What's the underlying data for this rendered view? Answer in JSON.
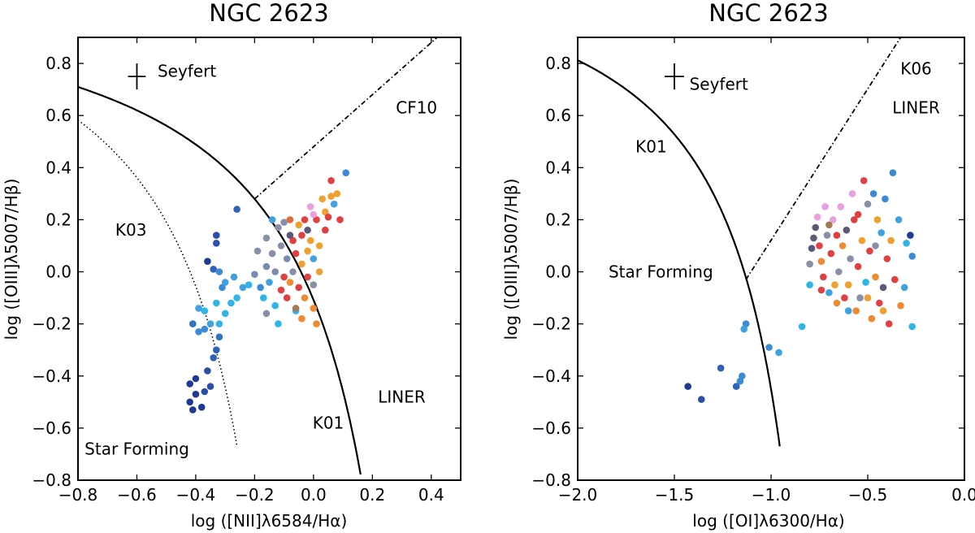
{
  "chart_data": [
    {
      "type": "scatter",
      "title": "NGC 2623",
      "xlabel": "log ([NII]λ6584/Hα)",
      "ylabel": "log ([OIII]λ5007/Hβ)",
      "xlim": [
        -0.8,
        0.5
      ],
      "ylim": [
        -0.8,
        0.9
      ],
      "xticks": [
        "−0.8",
        "−0.6",
        "−0.4",
        "−0.2",
        "0.0",
        "0.2",
        "0.4"
      ],
      "yticks": [
        "−0.8",
        "−0.6",
        "−0.4",
        "−0.2",
        "0.0",
        "0.2",
        "0.4",
        "0.6",
        "0.8"
      ],
      "error_bar": {
        "x": -0.6,
        "y": 0.75,
        "xerr": 0.03,
        "yerr": 0.05
      },
      "lines": [
        {
          "name": "K01",
          "style": "solid",
          "formula": "0.61/(x-0.47)+1.19",
          "xrange": [
            -0.8,
            0.16
          ]
        },
        {
          "name": "K03",
          "style": "dotted",
          "formula": "0.61/(x-0.05)+1.3",
          "xrange": [
            -0.8,
            -0.26
          ]
        },
        {
          "name": "CF10",
          "style": "dashdot",
          "points": [
            [
              -0.2,
              0.28
            ],
            [
              0.42,
              0.9
            ]
          ]
        }
      ],
      "annotations": [
        {
          "text": "Seyfert",
          "x": -0.43,
          "y": 0.77
        },
        {
          "text": "CF10",
          "x": 0.35,
          "y": 0.63
        },
        {
          "text": "K03",
          "x": -0.62,
          "y": 0.16
        },
        {
          "text": "LINER",
          "x": 0.3,
          "y": -0.48
        },
        {
          "text": "K01",
          "x": 0.05,
          "y": -0.58
        },
        {
          "text": "Star Forming",
          "x": -0.6,
          "y": -0.68
        }
      ],
      "points": [
        {
          "x": -0.42,
          "y": -0.5,
          "c": "#1f3a93"
        },
        {
          "x": -0.41,
          "y": -0.53,
          "c": "#1f3a93"
        },
        {
          "x": -0.4,
          "y": -0.47,
          "c": "#1f3a93"
        },
        {
          "x": -0.42,
          "y": -0.43,
          "c": "#1f3a93"
        },
        {
          "x": -0.4,
          "y": -0.41,
          "c": "#1f3a93"
        },
        {
          "x": -0.38,
          "y": -0.52,
          "c": "#1f3a93"
        },
        {
          "x": -0.37,
          "y": -0.46,
          "c": "#2a4fa8"
        },
        {
          "x": -0.35,
          "y": -0.44,
          "c": "#2a4fa8"
        },
        {
          "x": -0.36,
          "y": -0.38,
          "c": "#2a4fa8"
        },
        {
          "x": -0.33,
          "y": -0.3,
          "c": "#2e62b8"
        },
        {
          "x": -0.34,
          "y": -0.33,
          "c": "#2e62b8"
        },
        {
          "x": -0.32,
          "y": -0.25,
          "c": "#2e72c4"
        },
        {
          "x": -0.41,
          "y": -0.2,
          "c": "#2e72c4"
        },
        {
          "x": -0.39,
          "y": -0.23,
          "c": "#3a8ad6"
        },
        {
          "x": -0.37,
          "y": -0.22,
          "c": "#3a8ad6"
        },
        {
          "x": -0.35,
          "y": -0.2,
          "c": "#3fa2e0"
        },
        {
          "x": -0.39,
          "y": -0.14,
          "c": "#3fa2e0"
        },
        {
          "x": -0.37,
          "y": -0.15,
          "c": "#2fb5e8"
        },
        {
          "x": -0.32,
          "y": -0.2,
          "c": "#2fb5e8"
        },
        {
          "x": -0.33,
          "y": -0.12,
          "c": "#2fb5e8"
        },
        {
          "x": -0.3,
          "y": -0.16,
          "c": "#2fb5e8"
        },
        {
          "x": -0.36,
          "y": 0.04,
          "c": "#1f3a93"
        },
        {
          "x": -0.33,
          "y": 0.14,
          "c": "#2a4fa8"
        },
        {
          "x": -0.33,
          "y": 0.11,
          "c": "#2a4fa8"
        },
        {
          "x": -0.34,
          "y": 0.01,
          "c": "#2e62b8"
        },
        {
          "x": -0.32,
          "y": 0.0,
          "c": "#3a8ad6"
        },
        {
          "x": -0.31,
          "y": -0.06,
          "c": "#3a8ad6"
        },
        {
          "x": -0.3,
          "y": -0.04,
          "c": "#3fa2e0"
        },
        {
          "x": -0.28,
          "y": -0.12,
          "c": "#2fb5e8"
        },
        {
          "x": -0.26,
          "y": -0.1,
          "c": "#2fb5e8"
        },
        {
          "x": -0.27,
          "y": -0.02,
          "c": "#3fa2e0"
        },
        {
          "x": -0.24,
          "y": -0.06,
          "c": "#3fa2e0"
        },
        {
          "x": -0.26,
          "y": 0.24,
          "c": "#2e62b8"
        },
        {
          "x": -0.22,
          "y": -0.05,
          "c": "#2fb5e8"
        },
        {
          "x": -0.2,
          "y": -0.01,
          "c": "#7a8bb0"
        },
        {
          "x": -0.19,
          "y": 0.08,
          "c": "#8a8fa8"
        },
        {
          "x": -0.18,
          "y": -0.06,
          "c": "#3a8ad6"
        },
        {
          "x": -0.17,
          "y": -0.1,
          "c": "#2fb5e8"
        },
        {
          "x": -0.16,
          "y": 0.02,
          "c": "#7a8bb0"
        },
        {
          "x": -0.16,
          "y": 0.13,
          "c": "#8a8fa8"
        },
        {
          "x": -0.15,
          "y": -0.04,
          "c": "#3fa2e0"
        },
        {
          "x": -0.14,
          "y": 0.07,
          "c": "#8a8fa8"
        },
        {
          "x": -0.13,
          "y": -0.13,
          "c": "#2fb5e8"
        },
        {
          "x": -0.13,
          "y": 0.0,
          "c": "#7a8bb0"
        },
        {
          "x": -0.12,
          "y": 0.17,
          "c": "#8a8fa8"
        },
        {
          "x": -0.11,
          "y": -0.07,
          "c": "#e04040"
        },
        {
          "x": -0.11,
          "y": 0.1,
          "c": "#8a8fa8"
        },
        {
          "x": -0.1,
          "y": -0.02,
          "c": "#e04040"
        },
        {
          "x": -0.1,
          "y": 0.19,
          "c": "#8a8fa8"
        },
        {
          "x": -0.09,
          "y": 0.05,
          "c": "#7a8bb0"
        },
        {
          "x": -0.09,
          "y": -0.1,
          "c": "#e04040"
        },
        {
          "x": -0.08,
          "y": 0.2,
          "c": "#e06a3a"
        },
        {
          "x": -0.08,
          "y": -0.04,
          "c": "#f08a30"
        },
        {
          "x": -0.07,
          "y": 0.12,
          "c": "#e04040"
        },
        {
          "x": -0.07,
          "y": 0.0,
          "c": "#8a8fa8"
        },
        {
          "x": -0.06,
          "y": -0.15,
          "c": "#2fb5e8"
        },
        {
          "x": -0.06,
          "y": 0.07,
          "c": "#e04040"
        },
        {
          "x": -0.05,
          "y": 0.18,
          "c": "#f0a030"
        },
        {
          "x": -0.05,
          "y": -0.06,
          "c": "#e04040"
        },
        {
          "x": -0.04,
          "y": 0.14,
          "c": "#e04040"
        },
        {
          "x": -0.04,
          "y": 0.03,
          "c": "#f0a030"
        },
        {
          "x": -0.03,
          "y": -0.1,
          "c": "#f08a30"
        },
        {
          "x": -0.03,
          "y": 0.2,
          "c": "#e04040"
        },
        {
          "x": -0.02,
          "y": 0.08,
          "c": "#f0a030"
        },
        {
          "x": -0.02,
          "y": -0.02,
          "c": "#e04040"
        },
        {
          "x": -0.01,
          "y": 0.25,
          "c": "#e9a0e0"
        },
        {
          "x": -0.01,
          "y": 0.12,
          "c": "#f0a030"
        },
        {
          "x": 0.0,
          "y": -0.05,
          "c": "#8a8fa8"
        },
        {
          "x": 0.0,
          "y": 0.05,
          "c": "#3fa2e0"
        },
        {
          "x": 0.01,
          "y": 0.2,
          "c": "#e04040"
        },
        {
          "x": 0.01,
          "y": -0.2,
          "c": "#f08a30"
        },
        {
          "x": 0.02,
          "y": 0.1,
          "c": "#f0a030"
        },
        {
          "x": 0.02,
          "y": 0.0,
          "c": "#f0a030"
        },
        {
          "x": 0.03,
          "y": 0.28,
          "c": "#f0a030"
        },
        {
          "x": 0.04,
          "y": 0.16,
          "c": "#e04040"
        },
        {
          "x": 0.04,
          "y": 0.23,
          "c": "#f0a030"
        },
        {
          "x": 0.05,
          "y": 0.21,
          "c": "#e04040"
        },
        {
          "x": 0.06,
          "y": 0.29,
          "c": "#f0a030"
        },
        {
          "x": 0.06,
          "y": 0.35,
          "c": "#e04040"
        },
        {
          "x": 0.07,
          "y": 0.26,
          "c": "#3fa2e0"
        },
        {
          "x": 0.08,
          "y": 0.3,
          "c": "#f0a030"
        },
        {
          "x": 0.09,
          "y": 0.2,
          "c": "#e04040"
        },
        {
          "x": 0.11,
          "y": 0.38,
          "c": "#3a8ad6"
        },
        {
          "x": -0.12,
          "y": -0.2,
          "c": "#2fb5e8"
        },
        {
          "x": -0.16,
          "y": -0.16,
          "c": "#8a8fa8"
        },
        {
          "x": -0.14,
          "y": 0.2,
          "c": "#3fa2e0"
        },
        {
          "x": -0.06,
          "y": -0.14,
          "c": "#a07a50"
        },
        {
          "x": -0.04,
          "y": -0.18,
          "c": "#f08a30"
        },
        {
          "x": 0.0,
          "y": -0.14,
          "c": "#f08a30"
        },
        {
          "x": -0.08,
          "y": 0.14,
          "c": "#5a5a78"
        },
        {
          "x": -0.02,
          "y": 0.16,
          "c": "#5a5a78"
        },
        {
          "x": 0.0,
          "y": 0.22,
          "c": "#e9a0e0"
        }
      ]
    },
    {
      "type": "scatter",
      "title": "NGC 2623",
      "xlabel": "log ([OI]λ6300/Hα)",
      "ylabel": "log ([OIII]λ5007/Hβ)",
      "xlim": [
        -2.0,
        0.0
      ],
      "ylim": [
        -0.8,
        0.9
      ],
      "xticks": [
        "−2.0",
        "−1.5",
        "−1.0",
        "−0.5",
        "0.0"
      ],
      "yticks": [
        "−0.8",
        "−0.6",
        "−0.4",
        "−0.2",
        "0.0",
        "0.2",
        "0.4",
        "0.6",
        "0.8"
      ],
      "error_bar": {
        "x": -1.5,
        "y": 0.75,
        "xerr": 0.05,
        "yerr": 0.05
      },
      "lines": [
        {
          "name": "K01",
          "style": "solid",
          "formula": "0.73/(x+0.59)+1.33",
          "xrange": [
            -2.0,
            -0.955
          ]
        },
        {
          "name": "K06",
          "style": "dashdot",
          "points": [
            [
              -1.13,
              -0.03
            ],
            [
              -0.33,
              0.9
            ]
          ]
        }
      ],
      "annotations": [
        {
          "text": "Seyfert",
          "x": -1.27,
          "y": 0.72
        },
        {
          "text": "K06",
          "x": -0.25,
          "y": 0.78
        },
        {
          "text": "LINER",
          "x": -0.25,
          "y": 0.63
        },
        {
          "text": "K01",
          "x": -1.62,
          "y": 0.48
        },
        {
          "text": "Star Forming",
          "x": -1.57,
          "y": 0.0
        }
      ],
      "points": [
        {
          "x": -1.43,
          "y": -0.44,
          "c": "#1f3a93"
        },
        {
          "x": -1.36,
          "y": -0.49,
          "c": "#2a4fa8"
        },
        {
          "x": -1.26,
          "y": -0.37,
          "c": "#2e62b8"
        },
        {
          "x": -1.18,
          "y": -0.44,
          "c": "#2e62b8"
        },
        {
          "x": -1.16,
          "y": -0.42,
          "c": "#3a8ad6"
        },
        {
          "x": -1.15,
          "y": -0.4,
          "c": "#3a8ad6"
        },
        {
          "x": -1.13,
          "y": -0.2,
          "c": "#3a8ad6"
        },
        {
          "x": -1.14,
          "y": -0.22,
          "c": "#3fa2e0"
        },
        {
          "x": -1.01,
          "y": -0.29,
          "c": "#3a8ad6"
        },
        {
          "x": -0.96,
          "y": -0.31,
          "c": "#3fa2e0"
        },
        {
          "x": -0.84,
          "y": -0.21,
          "c": "#2fb5e8"
        },
        {
          "x": -0.8,
          "y": -0.05,
          "c": "#2fb5e8"
        },
        {
          "x": -0.78,
          "y": 0.13,
          "c": "#5a5a78"
        },
        {
          "x": -0.77,
          "y": 0.17,
          "c": "#5a5a78"
        },
        {
          "x": -0.76,
          "y": 0.21,
          "c": "#e9a0e0"
        },
        {
          "x": -0.75,
          "y": 0.1,
          "c": "#e04040"
        },
        {
          "x": -0.74,
          "y": 0.04,
          "c": "#f08a30"
        },
        {
          "x": -0.73,
          "y": -0.02,
          "c": "#e04040"
        },
        {
          "x": -0.72,
          "y": 0.25,
          "c": "#e9a0e0"
        },
        {
          "x": -0.71,
          "y": 0.14,
          "c": "#8a8fa8"
        },
        {
          "x": -0.7,
          "y": -0.08,
          "c": "#3fa2e0"
        },
        {
          "x": -0.69,
          "y": 0.07,
          "c": "#e04040"
        },
        {
          "x": -0.68,
          "y": 0.2,
          "c": "#e9a0e0"
        },
        {
          "x": -0.67,
          "y": -0.05,
          "c": "#f0a030"
        },
        {
          "x": -0.66,
          "y": 0.14,
          "c": "#e04040"
        },
        {
          "x": -0.65,
          "y": 0.0,
          "c": "#8a8fa8"
        },
        {
          "x": -0.64,
          "y": 0.25,
          "c": "#e9a0e0"
        },
        {
          "x": -0.63,
          "y": 0.1,
          "c": "#f08a30"
        },
        {
          "x": -0.62,
          "y": -0.1,
          "c": "#e04040"
        },
        {
          "x": -0.61,
          "y": 0.16,
          "c": "#5a5a78"
        },
        {
          "x": -0.6,
          "y": -0.05,
          "c": "#f0a030"
        },
        {
          "x": -0.59,
          "y": 0.05,
          "c": "#8a8fa8"
        },
        {
          "x": -0.58,
          "y": 0.3,
          "c": "#e9a0e0"
        },
        {
          "x": -0.57,
          "y": 0.2,
          "c": "#e04040"
        },
        {
          "x": -0.56,
          "y": -0.15,
          "c": "#f08a30"
        },
        {
          "x": -0.55,
          "y": 0.02,
          "c": "#e04040"
        },
        {
          "x": -0.54,
          "y": -0.1,
          "c": "#8a8fa8"
        },
        {
          "x": -0.53,
          "y": 0.12,
          "c": "#f0a030"
        },
        {
          "x": -0.52,
          "y": 0.35,
          "c": "#e04040"
        },
        {
          "x": -0.51,
          "y": -0.04,
          "c": "#2fb5e8"
        },
        {
          "x": -0.5,
          "y": 0.26,
          "c": "#8a8fa8"
        },
        {
          "x": -0.49,
          "y": 0.08,
          "c": "#e04040"
        },
        {
          "x": -0.48,
          "y": -0.18,
          "c": "#f08a30"
        },
        {
          "x": -0.47,
          "y": 0.3,
          "c": "#3a8ad6"
        },
        {
          "x": -0.46,
          "y": -0.02,
          "c": "#f08a30"
        },
        {
          "x": -0.45,
          "y": 0.2,
          "c": "#f0a030"
        },
        {
          "x": -0.44,
          "y": -0.12,
          "c": "#e04040"
        },
        {
          "x": -0.43,
          "y": 0.15,
          "c": "#3fa2e0"
        },
        {
          "x": -0.42,
          "y": -0.06,
          "c": "#5a5a78"
        },
        {
          "x": -0.41,
          "y": 0.28,
          "c": "#3a8ad6"
        },
        {
          "x": -0.4,
          "y": 0.05,
          "c": "#e04040"
        },
        {
          "x": -0.39,
          "y": -0.2,
          "c": "#e04040"
        },
        {
          "x": -0.38,
          "y": 0.12,
          "c": "#f0a030"
        },
        {
          "x": -0.37,
          "y": 0.38,
          "c": "#3a8ad6"
        },
        {
          "x": -0.36,
          "y": -0.03,
          "c": "#e04040"
        },
        {
          "x": -0.34,
          "y": 0.2,
          "c": "#3fa2e0"
        },
        {
          "x": -0.33,
          "y": -0.13,
          "c": "#f08a30"
        },
        {
          "x": -0.31,
          "y": -0.06,
          "c": "#3fa2e0"
        },
        {
          "x": -0.3,
          "y": 0.11,
          "c": "#2fb5e8"
        },
        {
          "x": -0.28,
          "y": 0.14,
          "c": "#1f3a93"
        },
        {
          "x": -0.27,
          "y": 0.06,
          "c": "#3a8ad6"
        },
        {
          "x": -0.27,
          "y": -0.21,
          "c": "#2fb5e8"
        },
        {
          "x": -0.8,
          "y": 0.03,
          "c": "#8a8fa8"
        },
        {
          "x": -0.79,
          "y": 0.09,
          "c": "#5a5a78"
        },
        {
          "x": -0.74,
          "y": -0.07,
          "c": "#e04040"
        },
        {
          "x": -0.7,
          "y": 0.18,
          "c": "#a07a50"
        },
        {
          "x": -0.66,
          "y": -0.12,
          "c": "#f08a30"
        },
        {
          "x": -0.6,
          "y": -0.15,
          "c": "#3fa2e0"
        },
        {
          "x": -0.55,
          "y": 0.22,
          "c": "#e04040"
        },
        {
          "x": -0.5,
          "y": -0.1,
          "c": "#f0a030"
        },
        {
          "x": -0.46,
          "y": 0.1,
          "c": "#8a8fa8"
        },
        {
          "x": -0.42,
          "y": -0.15,
          "c": "#f0a030"
        }
      ]
    }
  ]
}
